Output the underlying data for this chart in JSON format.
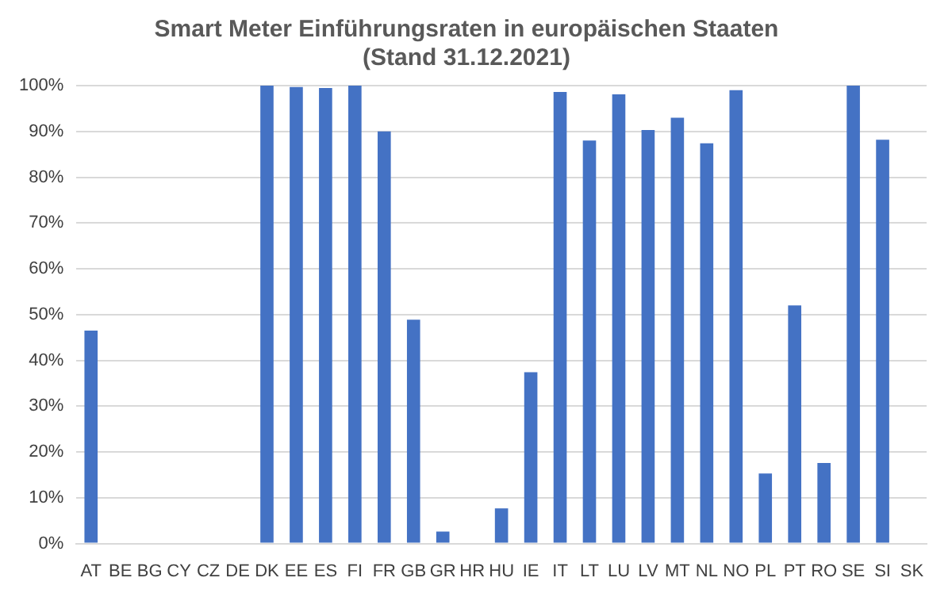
{
  "chart_data": {
    "type": "bar",
    "title": [
      "Smart Meter Einführungsraten in europäischen Staaten",
      "(Stand 31.12.2021)"
    ],
    "categories": [
      "AT",
      "BE",
      "BG",
      "CY",
      "CZ",
      "DE",
      "DK",
      "EE",
      "ES",
      "FI",
      "FR",
      "GB",
      "GR",
      "HR",
      "HU",
      "IE",
      "IT",
      "LT",
      "LU",
      "LV",
      "MT",
      "NL",
      "NO",
      "PL",
      "PT",
      "RO",
      "SE",
      "SI",
      "SK"
    ],
    "values": [
      46.5,
      0,
      0,
      0,
      0,
      0,
      100,
      99.7,
      99.5,
      100,
      90,
      48.9,
      2.6,
      0,
      7.7,
      37.4,
      98.6,
      88,
      98.1,
      90.3,
      93,
      87.4,
      99,
      15.3,
      52,
      17.6,
      100,
      88.2,
      0
    ],
    "color": "#4472c4",
    "ylim": [
      0,
      100
    ],
    "yticks": [
      {
        "value": 0,
        "label": "0%"
      },
      {
        "value": 10,
        "label": "10%"
      },
      {
        "value": 20,
        "label": "20%"
      },
      {
        "value": 30,
        "label": "30%"
      },
      {
        "value": 40,
        "label": "40%"
      },
      {
        "value": 50,
        "label": "50%"
      },
      {
        "value": 60,
        "label": "60%"
      },
      {
        "value": 70,
        "label": "70%"
      },
      {
        "value": 80,
        "label": "80%"
      },
      {
        "value": 90,
        "label": "90%"
      },
      {
        "value": 100,
        "label": "100%"
      }
    ],
    "grid": "y",
    "legend": false
  }
}
